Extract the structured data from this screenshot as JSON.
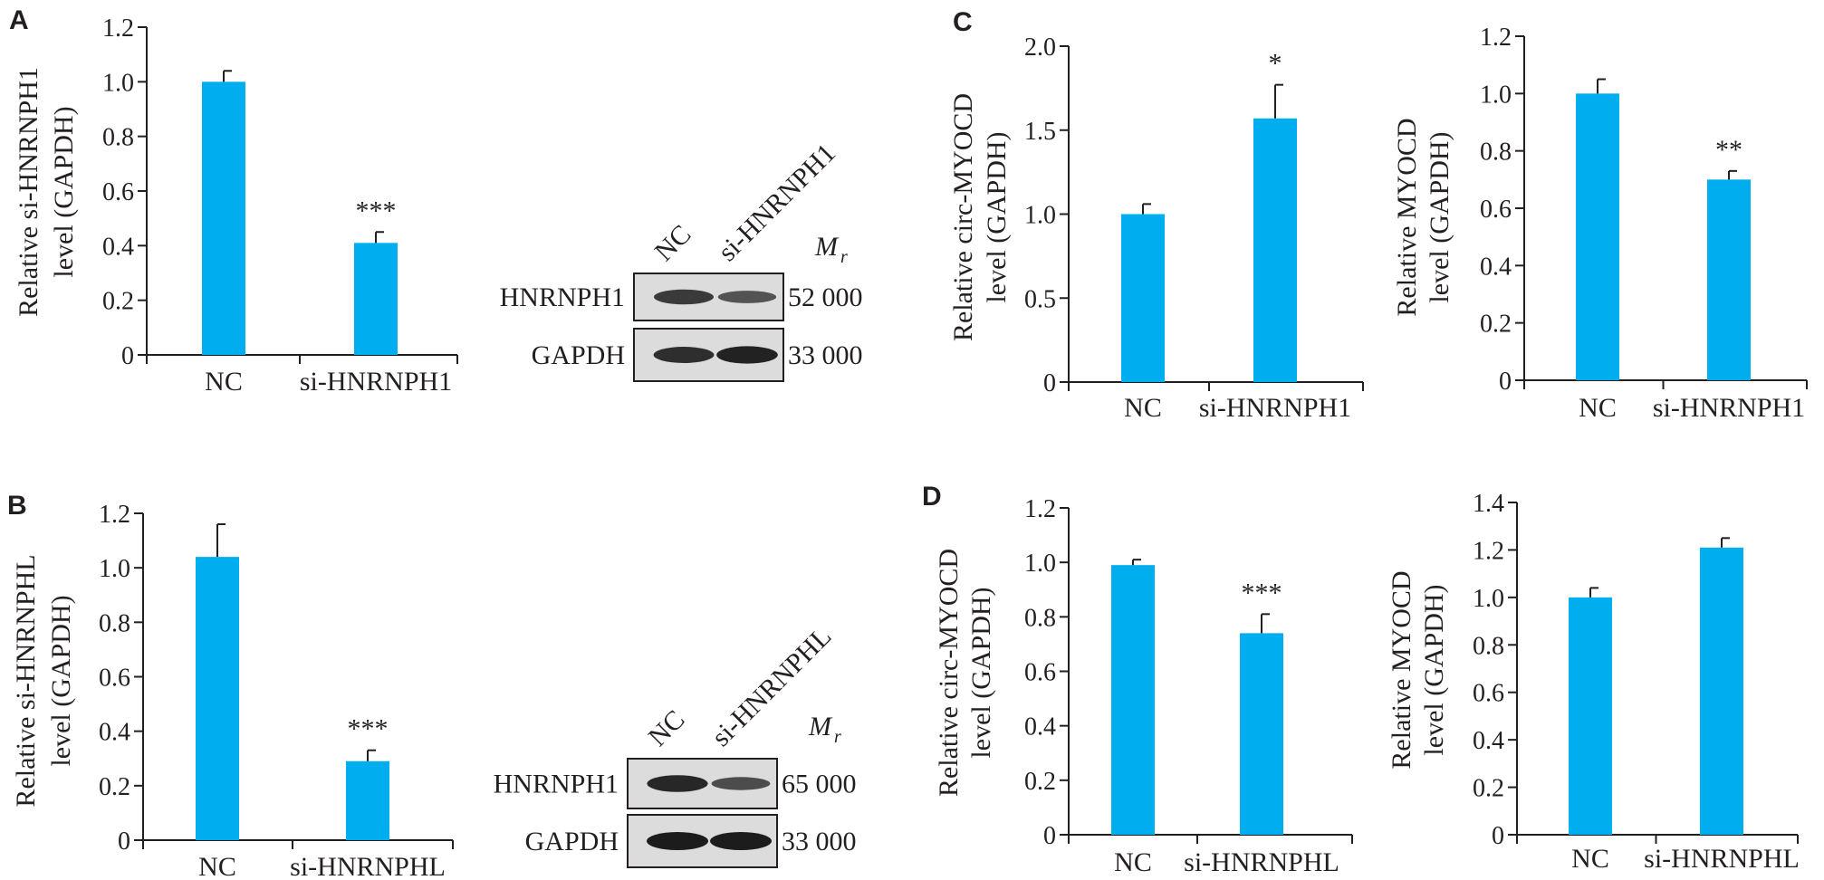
{
  "colors": {
    "bar": "#00aeef",
    "axis": "#231f20",
    "text": "#231f20",
    "band": "#111111",
    "membrane": "#dcdcdc"
  },
  "chart_data": [
    {
      "panel": "A",
      "type": "bar",
      "categories": [
        "NC",
        "si-HNRNPH1"
      ],
      "values": [
        1.0,
        0.41
      ],
      "errors": [
        0.04,
        0.04
      ],
      "significance": [
        "",
        "***"
      ],
      "ylabel": [
        "Relative si-HNRNPH1",
        "level (GAPDH)"
      ],
      "yticks": [
        "0",
        "0.2",
        "0.4",
        "0.6",
        "0.8",
        "1.0",
        "1.2"
      ],
      "ylim": [
        0,
        1.2
      ]
    },
    {
      "panel": "B",
      "type": "bar",
      "categories": [
        "NC",
        "si-HNRNPHL"
      ],
      "values": [
        1.04,
        0.29
      ],
      "errors": [
        0.12,
        0.04
      ],
      "significance": [
        "",
        "***"
      ],
      "ylabel": [
        "Relative si-HNRNPHL",
        "level (GAPDH)"
      ],
      "yticks": [
        "0",
        "0.2",
        "0.4",
        "0.6",
        "0.8",
        "1.0",
        "1.2"
      ],
      "ylim": [
        0,
        1.2
      ]
    },
    {
      "panel": "C",
      "type": "bar",
      "categories": [
        "NC",
        "si-HNRNPH1"
      ],
      "values": [
        1.0,
        1.57
      ],
      "errors": [
        0.06,
        0.2
      ],
      "significance": [
        "",
        "*"
      ],
      "ylabel": [
        "Relative circ-MYOCD",
        "level (GAPDH)"
      ],
      "yticks": [
        "0",
        "0.5",
        "1.0",
        "1.5",
        "2.0"
      ],
      "ylim": [
        0,
        2.0
      ]
    },
    {
      "panel": "",
      "type": "bar",
      "categories": [
        "NC",
        "si-HNRNPH1"
      ],
      "values": [
        1.0,
        0.7
      ],
      "errors": [
        0.05,
        0.03
      ],
      "significance": [
        "",
        "**"
      ],
      "ylabel": [
        "Relative MYOCD",
        "level (GAPDH)"
      ],
      "yticks": [
        "0",
        "0.2",
        "0.4",
        "0.6",
        "0.8",
        "1.0",
        "1.2"
      ],
      "ylim": [
        0,
        1.2
      ]
    },
    {
      "panel": "D",
      "type": "bar",
      "categories": [
        "NC",
        "si-HNRNPHL"
      ],
      "values": [
        0.99,
        0.74
      ],
      "errors": [
        0.02,
        0.07
      ],
      "significance": [
        "",
        "***"
      ],
      "ylabel": [
        "Relative circ-MYOCD",
        "level (GAPDH)"
      ],
      "yticks": [
        "0",
        "0.2",
        "0.4",
        "0.6",
        "0.8",
        "1.0",
        "1.2"
      ],
      "ylim": [
        0,
        1.2
      ]
    },
    {
      "panel": "",
      "type": "bar",
      "categories": [
        "NC",
        "si-HNRNPHL"
      ],
      "values": [
        1.0,
        1.21
      ],
      "errors": [
        0.04,
        0.04
      ],
      "significance": [
        "",
        ""
      ],
      "ylabel": [
        "Relative MYOCD",
        "level (GAPDH)"
      ],
      "yticks": [
        "0",
        "0.2",
        "0.4",
        "0.6",
        "0.8",
        "1.0",
        "1.2",
        "1.4"
      ],
      "ylim": [
        0,
        1.4
      ]
    }
  ],
  "blots": [
    {
      "lanes": [
        "NC",
        "si-HNRNPH1"
      ],
      "mr_label": "M",
      "mr_sub": "r",
      "rows": [
        {
          "protein": "HNRNPH1",
          "mw": "52 000",
          "intensity": [
            0.75,
            0.55
          ]
        },
        {
          "protein": "GAPDH",
          "mw": "33 000",
          "intensity": [
            0.85,
            0.95
          ]
        }
      ]
    },
    {
      "lanes": [
        "NC",
        "si-HNRNPHL"
      ],
      "mr_label": "M",
      "mr_sub": "r",
      "rows": [
        {
          "protein": "HNRNPH1",
          "mw": "65 000",
          "intensity": [
            0.9,
            0.6
          ]
        },
        {
          "protein": "GAPDH",
          "mw": "33 000",
          "intensity": [
            1.0,
            1.0
          ]
        }
      ]
    }
  ]
}
